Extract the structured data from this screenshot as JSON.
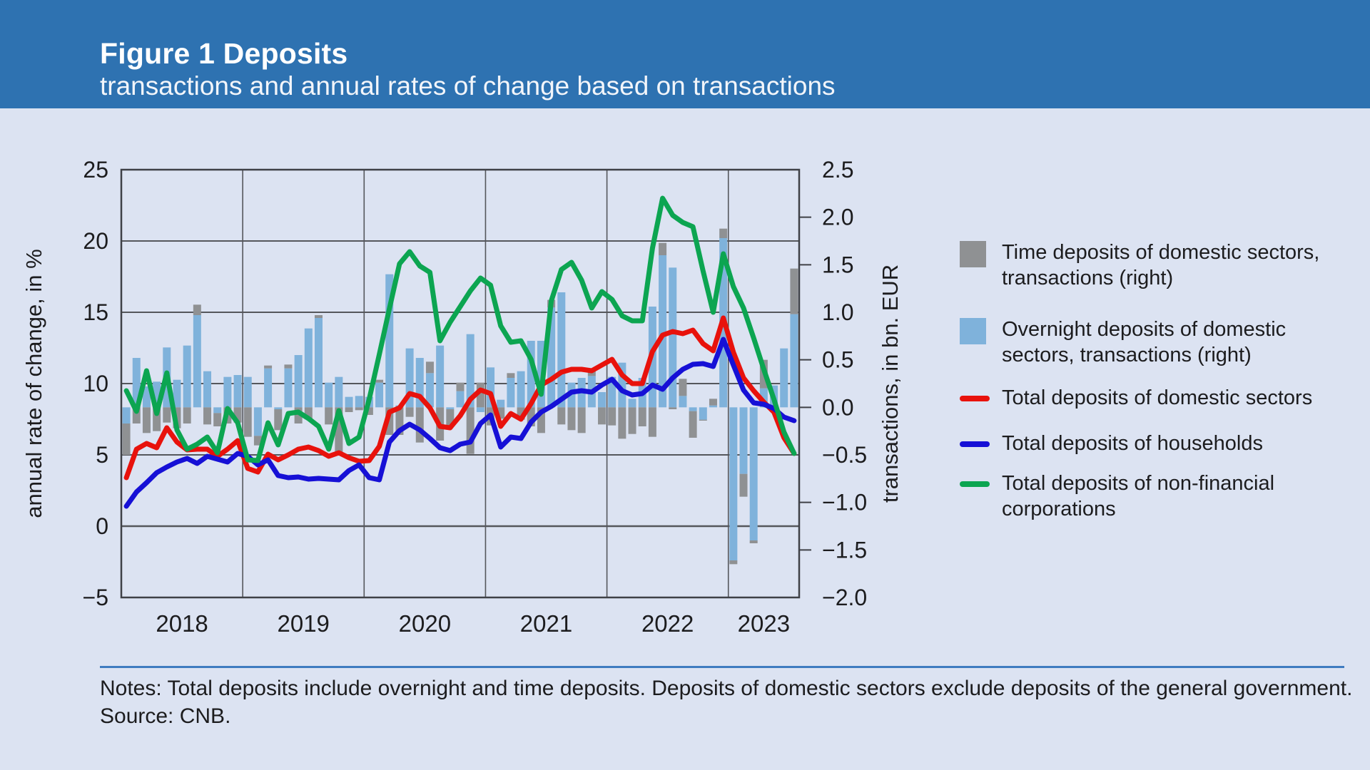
{
  "header": {
    "title": "Figure 1 Deposits",
    "subtitle": "transactions and annual rates of change based on transactions"
  },
  "notes": {
    "notes_line": "Notes: Total deposits include overnight and time deposits. Deposits of domestic sectors exclude deposits of the general government.",
    "source_line": "Source: CNB."
  },
  "colors": {
    "header_bg": "#2e72b1",
    "page_bg": "#dce3f2",
    "gridline": "#55575c",
    "plot_border": "#3f4147",
    "bar_overnight": "#7fb2db",
    "bar_time": "#8f9193",
    "line_domestic": "#e8120c",
    "line_households": "#1610d6",
    "line_nfc": "#0ca551",
    "divider": "#3f7cc0",
    "text": "#1c1c1e"
  },
  "legend": {
    "items": [
      {
        "swatch": "box",
        "color": "#8f9193",
        "lines": [
          "Time deposits of domestic sectors,",
          "transactions (right)"
        ]
      },
      {
        "swatch": "box",
        "color": "#7fb2db",
        "lines": [
          "Overnight deposits of domestic",
          "sectors, transactions (right)"
        ]
      },
      {
        "swatch": "line",
        "color": "#e8120c",
        "lines": [
          "Total deposits of domestic sectors"
        ]
      },
      {
        "swatch": "line",
        "color": "#1610d6",
        "lines": [
          "Total deposits of households"
        ]
      },
      {
        "swatch": "line",
        "color": "#0ca551",
        "lines": [
          "Total deposits of non-financial",
          "corporations"
        ]
      }
    ],
    "row_tops": [
      0,
      108,
      204,
      268,
      324
    ]
  },
  "chart_data": {
    "type": "combo-bar-line",
    "left_axis": {
      "title": "annual rate of change, in %",
      "min": -5,
      "max": 25,
      "ticks": [
        25,
        20,
        15,
        10,
        5,
        0,
        -5
      ],
      "tick_labels": [
        "25",
        "20",
        "15",
        "10",
        "5",
        "0",
        "−5"
      ]
    },
    "right_axis": {
      "title": "transactions, in bn. EUR",
      "min": -2.0,
      "max": 2.5,
      "ticks": [
        2.5,
        2.0,
        1.5,
        1.0,
        0.5,
        0.0,
        -0.5,
        -1.0,
        -1.5,
        -2.0
      ],
      "tick_labels": [
        "2.5",
        "2.0",
        "1.5",
        "1.0",
        "0.5",
        "0.0",
        "−0.5",
        "−1.0",
        "−1.5",
        "−2.0"
      ],
      "external_tick_values": [
        2.0,
        1.5,
        0.5,
        0.0,
        -1.0,
        -1.5
      ]
    },
    "x_axis": {
      "year_labels": [
        "2018",
        "2019",
        "2020",
        "2021",
        "2022",
        "2023"
      ],
      "months_per_year": 12
    },
    "months": [
      "2018-01",
      "2018-02",
      "2018-03",
      "2018-04",
      "2018-05",
      "2018-06",
      "2018-07",
      "2018-08",
      "2018-09",
      "2018-10",
      "2018-11",
      "2018-12",
      "2019-01",
      "2019-02",
      "2019-03",
      "2019-04",
      "2019-05",
      "2019-06",
      "2019-07",
      "2019-08",
      "2019-09",
      "2019-10",
      "2019-11",
      "2019-12",
      "2020-01",
      "2020-02",
      "2020-03",
      "2020-04",
      "2020-05",
      "2020-06",
      "2020-07",
      "2020-08",
      "2020-09",
      "2020-10",
      "2020-11",
      "2020-12",
      "2021-01",
      "2021-02",
      "2021-03",
      "2021-04",
      "2021-05",
      "2021-06",
      "2021-07",
      "2021-08",
      "2021-09",
      "2021-10",
      "2021-11",
      "2021-12",
      "2022-01",
      "2022-02",
      "2022-03",
      "2022-04",
      "2022-05",
      "2022-06",
      "2022-07",
      "2022-08",
      "2022-09",
      "2022-10",
      "2022-11",
      "2022-12",
      "2023-01",
      "2023-02",
      "2023-03",
      "2023-04",
      "2023-05",
      "2023-06",
      "2023-07"
    ],
    "bar_series": [
      {
        "name": "Overnight deposits of domestic sectors, transactions (right)",
        "axis": "right",
        "color": "#7fb2db",
        "values": [
          -0.17,
          0.52,
          0.22,
          0.27,
          0.63,
          0.29,
          0.65,
          0.97,
          0.38,
          -0.06,
          0.32,
          0.34,
          0.32,
          -0.3,
          0.41,
          -0.02,
          0.41,
          0.55,
          0.83,
          0.94,
          0.26,
          0.32,
          0.11,
          0.12,
          0.11,
          0.26,
          1.4,
          0.02,
          0.62,
          0.52,
          0.36,
          0.65,
          -0.02,
          0.17,
          0.77,
          -0.05,
          0.42,
          0.08,
          0.31,
          0.38,
          0.7,
          0.7,
          1.05,
          1.21,
          0.26,
          0.31,
          0.33,
          0.16,
          0.32,
          0.47,
          0.09,
          0.31,
          1.06,
          1.6,
          1.47,
          0.12,
          -0.04,
          -0.13,
          0.02,
          1.78,
          -1.61,
          -0.7,
          -1.4,
          0.2,
          0.23,
          0.62,
          0.98
        ]
      },
      {
        "name": "Time deposits of domestic sectors, transactions (right)",
        "axis": "right",
        "color": "#8f9193",
        "values": [
          -0.33,
          -0.17,
          -0.27,
          -0.25,
          -0.16,
          -0.22,
          -0.17,
          0.11,
          -0.18,
          -0.14,
          -0.17,
          -0.16,
          -0.31,
          -0.1,
          0.03,
          -0.22,
          0.04,
          -0.17,
          -0.12,
          0.03,
          -0.18,
          -0.47,
          -0.05,
          -0.03,
          -0.08,
          0.03,
          -0.29,
          -0.29,
          -0.1,
          -0.37,
          0.12,
          -0.35,
          -0.17,
          0.09,
          -0.49,
          0.26,
          -0.19,
          -0.12,
          0.05,
          -0.13,
          -0.2,
          -0.27,
          0.08,
          -0.18,
          -0.24,
          -0.27,
          0.07,
          -0.18,
          -0.19,
          -0.33,
          -0.28,
          -0.2,
          -0.31,
          0.13,
          -0.02,
          0.18,
          -0.28,
          -0.01,
          0.07,
          0.1,
          -0.04,
          -0.24,
          -0.03,
          0.3,
          0.0,
          0.0,
          0.48
        ]
      }
    ],
    "line_series": [
      {
        "name": "Total deposits of domestic sectors",
        "axis": "left",
        "color": "#e8120c",
        "values": [
          3.4,
          5.4,
          5.8,
          5.5,
          6.9,
          5.9,
          5.35,
          5.4,
          5.4,
          4.9,
          5.4,
          6.0,
          4.05,
          3.8,
          5.05,
          4.65,
          5.0,
          5.4,
          5.55,
          5.3,
          4.9,
          5.15,
          4.8,
          4.55,
          4.6,
          5.6,
          8.0,
          8.3,
          9.3,
          9.1,
          8.3,
          7.0,
          6.9,
          7.75,
          8.9,
          9.55,
          9.3,
          7.0,
          7.9,
          7.5,
          8.6,
          9.9,
          10.3,
          10.8,
          11.0,
          11.0,
          10.9,
          11.3,
          11.7,
          10.6,
          10.0,
          10.0,
          12.25,
          13.4,
          13.65,
          13.5,
          13.75,
          12.8,
          12.3,
          14.6,
          12.2,
          10.4,
          9.5,
          8.7,
          8.0,
          6.2,
          5.1
        ]
      },
      {
        "name": "Total deposits of households",
        "axis": "left",
        "color": "#1610d6",
        "values": [
          1.4,
          2.4,
          3.05,
          3.75,
          4.15,
          4.5,
          4.75,
          4.4,
          4.9,
          4.7,
          4.5,
          5.1,
          4.9,
          4.3,
          4.65,
          3.55,
          3.4,
          3.45,
          3.3,
          3.35,
          3.3,
          3.25,
          3.9,
          4.3,
          3.4,
          3.25,
          5.9,
          6.7,
          7.15,
          6.75,
          6.15,
          5.5,
          5.3,
          5.75,
          5.9,
          7.2,
          7.8,
          5.55,
          6.25,
          6.15,
          7.3,
          8.0,
          8.4,
          8.9,
          9.4,
          9.5,
          9.4,
          9.9,
          10.3,
          9.5,
          9.2,
          9.3,
          9.9,
          9.6,
          10.4,
          11.0,
          11.35,
          11.4,
          11.2,
          13.1,
          11.3,
          9.55,
          8.65,
          8.55,
          8.25,
          7.65,
          7.4
        ]
      },
      {
        "name": "Total deposits of non-financial corporations",
        "axis": "left",
        "color": "#0ca551",
        "values": [
          9.5,
          8.05,
          10.9,
          7.9,
          10.75,
          6.75,
          5.4,
          5.75,
          6.25,
          5.15,
          8.25,
          7.25,
          4.65,
          4.6,
          7.25,
          5.7,
          7.9,
          8.0,
          7.55,
          7.0,
          5.4,
          8.1,
          5.8,
          6.25,
          8.9,
          12.05,
          15.25,
          18.4,
          19.25,
          18.25,
          17.8,
          13.0,
          14.3,
          15.4,
          16.5,
          17.4,
          16.9,
          14.05,
          12.9,
          13.0,
          11.7,
          9.25,
          15.8,
          18.0,
          18.5,
          17.25,
          15.3,
          16.45,
          15.9,
          14.75,
          14.4,
          14.4,
          19.5,
          23.0,
          21.8,
          21.3,
          21.0,
          17.9,
          15.0,
          19.1,
          16.8,
          15.3,
          13.2,
          11.0,
          8.9,
          6.6,
          5.1
        ]
      }
    ]
  }
}
